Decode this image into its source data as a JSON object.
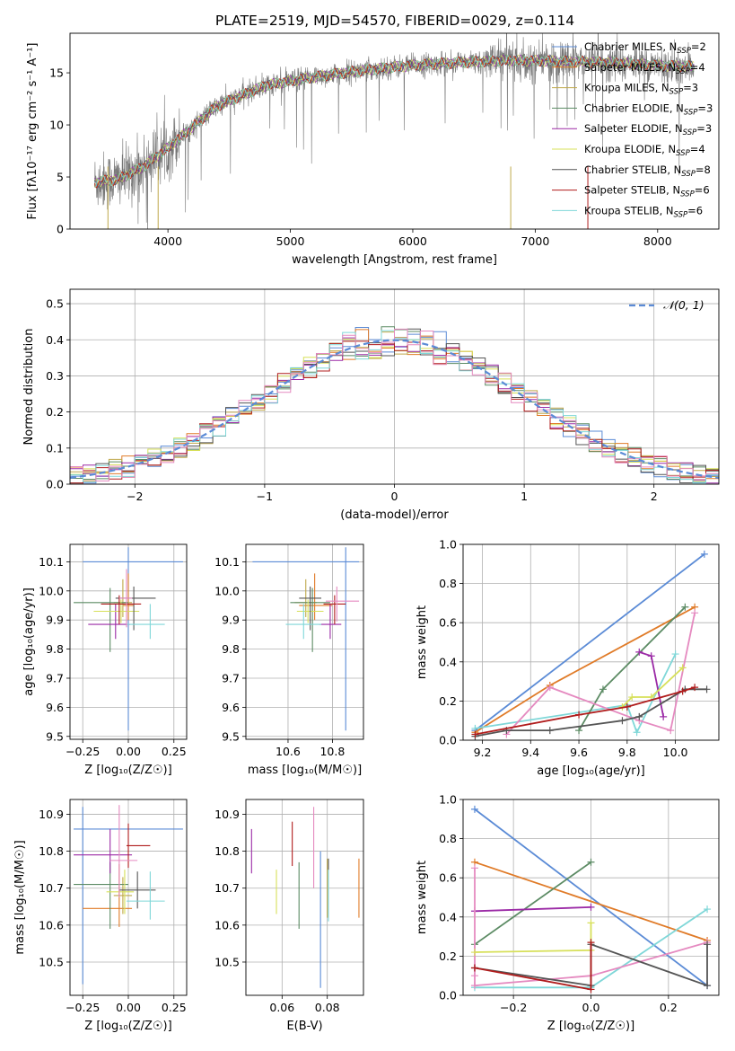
{
  "title": "PLATE=2519, MJD=54570, FIBERID=0029, z=0.114",
  "colors": {
    "chabrier_miles": "#5b8bd6",
    "salpeter_miles": "#e07b28",
    "kroupa_miles": "#bfa84a",
    "chabrier_elodie": "#5c8b64",
    "salpeter_elodie": "#9b2aa6",
    "kroupa_elodie": "#d7e05a",
    "chabrier_stelib": "#555555",
    "salpeter_stelib": "#b01c1c",
    "kroupa_stelib": "#7fd7d8",
    "extra_pink": "#e58ac0"
  },
  "chart_data": [
    {
      "id": "spectrum",
      "type": "line",
      "xlabel": "wavelength [Angstrom, rest frame]",
      "ylabel": "Flux [fλ10⁻¹⁷ erg cm⁻² s⁻¹ A⁻¹]",
      "xlim": [
        3200,
        8500
      ],
      "ylim": [
        0,
        18.8
      ],
      "xticks": [
        "4000",
        "5000",
        "6000",
        "7000",
        "8000"
      ],
      "yticks": [
        "0",
        "5",
        "10",
        "15"
      ],
      "grid": false,
      "legend_position": "upper-right",
      "continuum": {
        "x": [
          3400,
          3600,
          3800,
          4000,
          4200,
          4400,
          4600,
          4800,
          5000,
          5200,
          5500,
          5800,
          6100,
          6400,
          6800,
          7200,
          7600,
          8000,
          8300
        ],
        "y": [
          4.5,
          4.8,
          6.0,
          7.8,
          9.8,
          11.8,
          12.8,
          13.8,
          14.2,
          14.6,
          15.1,
          15.5,
          15.8,
          16.0,
          16.2,
          16.1,
          16.0,
          15.7,
          15.6
        ]
      },
      "series": [
        {
          "name": "Chabrier MILES, N_SSP=2",
          "color_key": "chabrier_miles"
        },
        {
          "name": "Salpeter MILES, N_SSP=4",
          "color_key": "salpeter_miles"
        },
        {
          "name": "Kroupa MILES, N_SSP=3",
          "color_key": "kroupa_miles"
        },
        {
          "name": "Chabrier ELODIE, N_SSP=3",
          "color_key": "chabrier_elodie"
        },
        {
          "name": "Salpeter ELODIE, N_SSP=3",
          "color_key": "salpeter_elodie"
        },
        {
          "name": "Kroupa ELODIE, N_SSP=4",
          "color_key": "kroupa_elodie"
        },
        {
          "name": "Chabrier STELIB, N_SSP=8",
          "color_key": "chabrier_stelib"
        },
        {
          "name": "Salpeter STELIB, N_SSP=6",
          "color_key": "salpeter_stelib"
        },
        {
          "name": "Kroupa STELIB, N_SSP=6",
          "color_key": "kroupa_stelib"
        }
      ]
    },
    {
      "id": "residuals",
      "type": "line",
      "xlabel": "(data-model)/error",
      "ylabel": "Normed distribution",
      "xlim": [
        -2.5,
        2.5
      ],
      "ylim": [
        0,
        0.54
      ],
      "xticks": [
        "−2",
        "−1",
        "0",
        "1",
        "2"
      ],
      "yticks": [
        "0.0",
        "0.1",
        "0.2",
        "0.3",
        "0.4",
        "0.5"
      ],
      "grid": true,
      "legend_position": "upper-right",
      "legend_label": "𝒩(0, 1)",
      "bin_width": 0.1,
      "normal": {
        "mean": 0,
        "sigma": 1
      }
    },
    {
      "id": "age_vs_Z",
      "type": "scatter",
      "xlabel": "Z [log₁₀(Z/Z☉)]",
      "ylabel": "age  [log₁₀(age/yr)]",
      "xlim": [
        -0.32,
        0.32
      ],
      "ylim": [
        9.49,
        10.16
      ],
      "xticks": [
        "−0.25",
        "0.00",
        "0.25"
      ],
      "yticks": [
        "9.5",
        "9.6",
        "9.7",
        "9.8",
        "9.9",
        "10.0",
        "10.1"
      ],
      "grid": true,
      "points": [
        {
          "color_key": "chabrier_miles",
          "x": 0.0,
          "xerr": [
            0.25,
            0.3
          ],
          "y": 10.1,
          "yerr": [
            0.58,
            0.05
          ]
        },
        {
          "color_key": "salpeter_miles",
          "x": 0.0,
          "xerr": [
            0.03,
            0.03
          ],
          "y": 9.95,
          "yerr": [
            0.05,
            0.11
          ]
        },
        {
          "color_key": "kroupa_miles",
          "x": -0.03,
          "xerr": [
            0.05,
            0.05
          ],
          "y": 9.96,
          "yerr": [
            0.05,
            0.08
          ]
        },
        {
          "color_key": "chabrier_elodie",
          "x": -0.1,
          "xerr": [
            0.2,
            0.1
          ],
          "y": 9.96,
          "yerr": [
            0.17,
            0.05
          ]
        },
        {
          "color_key": "salpeter_elodie",
          "x": -0.07,
          "xerr": [
            0.15,
            0.08
          ],
          "y": 9.885,
          "yerr": [
            0.05,
            0.07
          ]
        },
        {
          "color_key": "kroupa_elodie",
          "x": -0.04,
          "xerr": [
            0.15,
            0.1
          ],
          "y": 9.93,
          "yerr": [
            0.04,
            0.04
          ]
        },
        {
          "color_key": "chabrier_stelib",
          "x": 0.03,
          "xerr": [
            0.1,
            0.12
          ],
          "y": 9.975,
          "yerr": [
            0.11,
            0.04
          ]
        },
        {
          "color_key": "salpeter_stelib",
          "x": -0.05,
          "xerr": [
            0.1,
            0.12
          ],
          "y": 9.955,
          "yerr": [
            0.07,
            0.03
          ]
        },
        {
          "color_key": "kroupa_stelib",
          "x": 0.12,
          "xerr": [
            0.13,
            0.08
          ],
          "y": 9.885,
          "yerr": [
            0.05,
            0.07
          ]
        },
        {
          "color_key": "extra_pink",
          "x": -0.01,
          "xerr": [
            0.04,
            0.03
          ],
          "y": 9.975,
          "yerr": [
            0.1,
            0.1
          ]
        }
      ]
    },
    {
      "id": "age_vs_mass",
      "type": "scatter",
      "xlabel": "mass [log₁₀(M/M☉)]",
      "ylabel": "",
      "xlim": [
        10.41,
        10.94
      ],
      "ylim": [
        9.49,
        10.16
      ],
      "xticks": [
        "10.6",
        "10.8"
      ],
      "yticks": [
        "9.5",
        "9.6",
        "9.7",
        "9.8",
        "9.9",
        "10.0",
        "10.1"
      ],
      "grid": true,
      "points": [
        {
          "color_key": "chabrier_miles",
          "x": 10.86,
          "xerr": [
            0.42,
            0.06
          ],
          "y": 10.1,
          "yerr": [
            0.58,
            0.05
          ]
        },
        {
          "color_key": "salpeter_miles",
          "x": 10.72,
          "xerr": [
            0.07,
            0.08
          ],
          "y": 9.95,
          "yerr": [
            0.05,
            0.11
          ]
        },
        {
          "color_key": "kroupa_miles",
          "x": 10.68,
          "xerr": [
            0.05,
            0.05
          ],
          "y": 9.96,
          "yerr": [
            0.05,
            0.08
          ]
        },
        {
          "color_key": "chabrier_elodie",
          "x": 10.71,
          "xerr": [
            0.1,
            0.08
          ],
          "y": 9.96,
          "yerr": [
            0.17,
            0.05
          ]
        },
        {
          "color_key": "salpeter_elodie",
          "x": 10.79,
          "xerr": [
            0.05,
            0.05
          ],
          "y": 9.885,
          "yerr": [
            0.05,
            0.07
          ]
        },
        {
          "color_key": "kroupa_elodie",
          "x": 10.69,
          "xerr": [
            0.05,
            0.07
          ],
          "y": 9.93,
          "yerr": [
            0.04,
            0.04
          ]
        },
        {
          "color_key": "chabrier_stelib",
          "x": 10.7,
          "xerr": [
            0.05,
            0.05
          ],
          "y": 9.975,
          "yerr": [
            0.11,
            0.04
          ]
        },
        {
          "color_key": "salpeter_stelib",
          "x": 10.81,
          "xerr": [
            0.05,
            0.05
          ],
          "y": 9.955,
          "yerr": [
            0.07,
            0.03
          ]
        },
        {
          "color_key": "kroupa_stelib",
          "x": 10.67,
          "xerr": [
            0.08,
            0.08
          ],
          "y": 9.885,
          "yerr": [
            0.05,
            0.07
          ]
        },
        {
          "color_key": "extra_pink",
          "x": 10.82,
          "xerr": [
            0.05,
            0.1
          ],
          "y": 9.965,
          "yerr": [
            0.07,
            0.05
          ]
        }
      ]
    },
    {
      "id": "weight_vs_age",
      "type": "line",
      "xlabel": "age  [log₁₀(age/yr)]",
      "ylabel": "mass weight",
      "xlim": [
        9.12,
        10.18
      ],
      "ylim": [
        0,
        1.0
      ],
      "xticks": [
        "9.2",
        "9.4",
        "9.6",
        "9.8",
        "10.0"
      ],
      "yticks": [
        "0.0",
        "0.2",
        "0.4",
        "0.6",
        "0.8",
        "1.0"
      ],
      "grid": true,
      "series": [
        {
          "color_key": "chabrier_miles",
          "x": [
            9.17,
            10.12
          ],
          "y": [
            0.05,
            0.95
          ]
        },
        {
          "color_key": "salpeter_miles",
          "x": [
            9.17,
            9.48,
            10.08
          ],
          "y": [
            0.04,
            0.28,
            0.68
          ]
        },
        {
          "color_key": "kroupa_stelib",
          "x": [
            9.17,
            9.8,
            9.84,
            10.0
          ],
          "y": [
            0.06,
            0.18,
            0.04,
            0.44
          ]
        },
        {
          "color_key": "chabrier_elodie",
          "x": [
            9.6,
            9.7,
            10.04
          ],
          "y": [
            0.05,
            0.26,
            0.68
          ]
        },
        {
          "color_key": "salpeter_elodie",
          "x": [
            9.85,
            9.9,
            9.95
          ],
          "y": [
            0.45,
            0.43,
            0.12
          ]
        },
        {
          "color_key": "extra_pink",
          "x": [
            9.3,
            9.48,
            9.85,
            9.98,
            10.08
          ],
          "y": [
            0.03,
            0.27,
            0.1,
            0.05,
            0.65
          ]
        },
        {
          "color_key": "kroupa_elodie",
          "x": [
            9.78,
            9.82,
            9.9,
            10.03
          ],
          "y": [
            0.17,
            0.22,
            0.22,
            0.37
          ]
        },
        {
          "color_key": "chabrier_stelib",
          "x": [
            9.17,
            9.3,
            9.48,
            9.78,
            9.85,
            10.04,
            10.13
          ],
          "y": [
            0.02,
            0.05,
            0.05,
            0.1,
            0.12,
            0.26,
            0.26
          ]
        },
        {
          "color_key": "salpeter_stelib",
          "x": [
            9.17,
            9.6,
            9.8,
            10.03,
            10.08
          ],
          "y": [
            0.03,
            0.13,
            0.17,
            0.25,
            0.27
          ]
        }
      ]
    },
    {
      "id": "mass_vs_Z",
      "type": "scatter",
      "xlabel": "Z [log₁₀(Z/Z☉)]",
      "ylabel": "mass [log₁₀(M/M☉)]",
      "xlim": [
        -0.32,
        0.32
      ],
      "ylim": [
        10.41,
        10.94
      ],
      "xticks": [
        "−0.25",
        "0.00",
        "0.25"
      ],
      "yticks": [
        "10.5",
        "10.6",
        "10.7",
        "10.8",
        "10.9"
      ],
      "grid": true,
      "points": [
        {
          "color_key": "chabrier_miles",
          "x": -0.25,
          "xerr": [
            0.05,
            0.55
          ],
          "y": 10.86,
          "yerr": [
            0.42,
            0.06
          ]
        },
        {
          "color_key": "salpeter_miles",
          "x": -0.05,
          "xerr": [
            0.2,
            0.07
          ],
          "y": 10.645,
          "yerr": [
            0.05,
            0.12
          ]
        },
        {
          "color_key": "kroupa_miles",
          "x": -0.03,
          "xerr": [
            0.05,
            0.05
          ],
          "y": 10.68,
          "yerr": [
            0.05,
            0.05
          ]
        },
        {
          "color_key": "chabrier_elodie",
          "x": -0.1,
          "xerr": [
            0.2,
            0.1
          ],
          "y": 10.71,
          "yerr": [
            0.12,
            0.06
          ]
        },
        {
          "color_key": "salpeter_elodie",
          "x": -0.1,
          "xerr": [
            0.2,
            0.12
          ],
          "y": 10.79,
          "yerr": [
            0.05,
            0.07
          ]
        },
        {
          "color_key": "kroupa_elodie",
          "x": -0.02,
          "xerr": [
            0.1,
            0.05
          ],
          "y": 10.69,
          "yerr": [
            0.06,
            0.06
          ]
        },
        {
          "color_key": "chabrier_stelib",
          "x": 0.05,
          "xerr": [
            0.1,
            0.1
          ],
          "y": 10.695,
          "yerr": [
            0.05,
            0.05
          ]
        },
        {
          "color_key": "salpeter_stelib",
          "x": 0.0,
          "xerr": [
            0.01,
            0.12
          ],
          "y": 10.815,
          "yerr": [
            0.06,
            0.06
          ]
        },
        {
          "color_key": "kroupa_stelib",
          "x": 0.12,
          "xerr": [
            0.13,
            0.08
          ],
          "y": 10.665,
          "yerr": [
            0.05,
            0.08
          ]
        },
        {
          "color_key": "extra_pink",
          "x": -0.05,
          "xerr": [
            0.05,
            0.1
          ],
          "y": 10.775,
          "yerr": [
            0.1,
            0.15
          ]
        }
      ]
    },
    {
      "id": "mass_vs_ebv",
      "type": "scatter",
      "xlabel": "E(B-V)",
      "ylabel": "",
      "xlim": [
        0.044,
        0.096
      ],
      "ylim": [
        10.41,
        10.94
      ],
      "xticks": [
        "0.06",
        "0.08"
      ],
      "yticks": [
        "10.5",
        "10.6",
        "10.7",
        "10.8",
        "10.9"
      ],
      "grid": true,
      "points": [
        {
          "color_key": "chabrier_miles",
          "x": 0.077,
          "y": 10.6,
          "yerr": [
            0.17,
            0.2
          ]
        },
        {
          "color_key": "salpeter_miles",
          "x": 0.094,
          "y": 10.7,
          "yerr": [
            0.08,
            0.08
          ]
        },
        {
          "color_key": "kroupa_miles",
          "x": 0.08,
          "y": 10.7,
          "yerr": [
            0.08,
            0.08
          ]
        },
        {
          "color_key": "chabrier_elodie",
          "x": 0.0675,
          "y": 10.67,
          "yerr": [
            0.08,
            0.1
          ]
        },
        {
          "color_key": "salpeter_elodie",
          "x": 0.0465,
          "y": 10.8,
          "yerr": [
            0.06,
            0.06
          ]
        },
        {
          "color_key": "kroupa_elodie",
          "x": 0.0575,
          "y": 10.69,
          "yerr": [
            0.06,
            0.06
          ]
        },
        {
          "color_key": "chabrier_stelib",
          "x": 0.0805,
          "y": 10.7,
          "yerr": [
            0.08,
            0.08
          ]
        },
        {
          "color_key": "salpeter_stelib",
          "x": 0.0645,
          "y": 10.82,
          "yerr": [
            0.06,
            0.06
          ]
        },
        {
          "color_key": "kroupa_stelib",
          "x": 0.0805,
          "y": 10.68,
          "yerr": [
            0.07,
            0.07
          ]
        },
        {
          "color_key": "extra_pink",
          "x": 0.074,
          "y": 10.8,
          "yerr": [
            0.1,
            0.12
          ]
        }
      ]
    },
    {
      "id": "weight_vs_Z",
      "type": "line",
      "xlabel": "Z [log₁₀(Z/Z☉)]",
      "ylabel": "mass weight",
      "xlim": [
        -0.33,
        0.33
      ],
      "ylim": [
        0,
        1.0
      ],
      "xticks": [
        "−0.2",
        "0.0",
        "0.2"
      ],
      "yticks": [
        "0.0",
        "0.2",
        "0.4",
        "0.6",
        "0.8",
        "1.0"
      ],
      "grid": true,
      "series": [
        {
          "color_key": "chabrier_miles",
          "x": [
            -0.3,
            0.3
          ],
          "y": [
            0.95,
            0.05
          ]
        },
        {
          "color_key": "salpeter_miles",
          "x": [
            -0.3,
            0.3
          ],
          "y": [
            0.68,
            0.28
          ]
        },
        {
          "color_key": "kroupa_stelib",
          "x": [
            -0.3,
            0.0,
            0.3
          ],
          "y": [
            0.04,
            0.04,
            0.44
          ]
        },
        {
          "color_key": "chabrier_elodie",
          "x": [
            -0.3,
            0.0
          ],
          "y": [
            0.26,
            0.68
          ]
        },
        {
          "color_key": "salpeter_elodie",
          "x": [
            -0.3,
            0.0
          ],
          "y": [
            0.43,
            0.45
          ]
        },
        {
          "color_key": "extra_pink",
          "x": [
            -0.3,
            -0.3,
            -0.3,
            0.0,
            0.3
          ],
          "y": [
            0.65,
            0.1,
            0.05,
            0.1,
            0.27
          ]
        },
        {
          "color_key": "kroupa_elodie",
          "x": [
            -0.3,
            0.0,
            0.0
          ],
          "y": [
            0.22,
            0.23,
            0.37
          ]
        },
        {
          "color_key": "chabrier_stelib",
          "x": [
            -0.3,
            0.0,
            0.0,
            0.3,
            0.3
          ],
          "y": [
            0.14,
            0.05,
            0.26,
            0.05,
            0.26
          ]
        },
        {
          "color_key": "salpeter_stelib",
          "x": [
            -0.3,
            0.0,
            0.0
          ],
          "y": [
            0.14,
            0.03,
            0.27
          ]
        }
      ]
    }
  ]
}
